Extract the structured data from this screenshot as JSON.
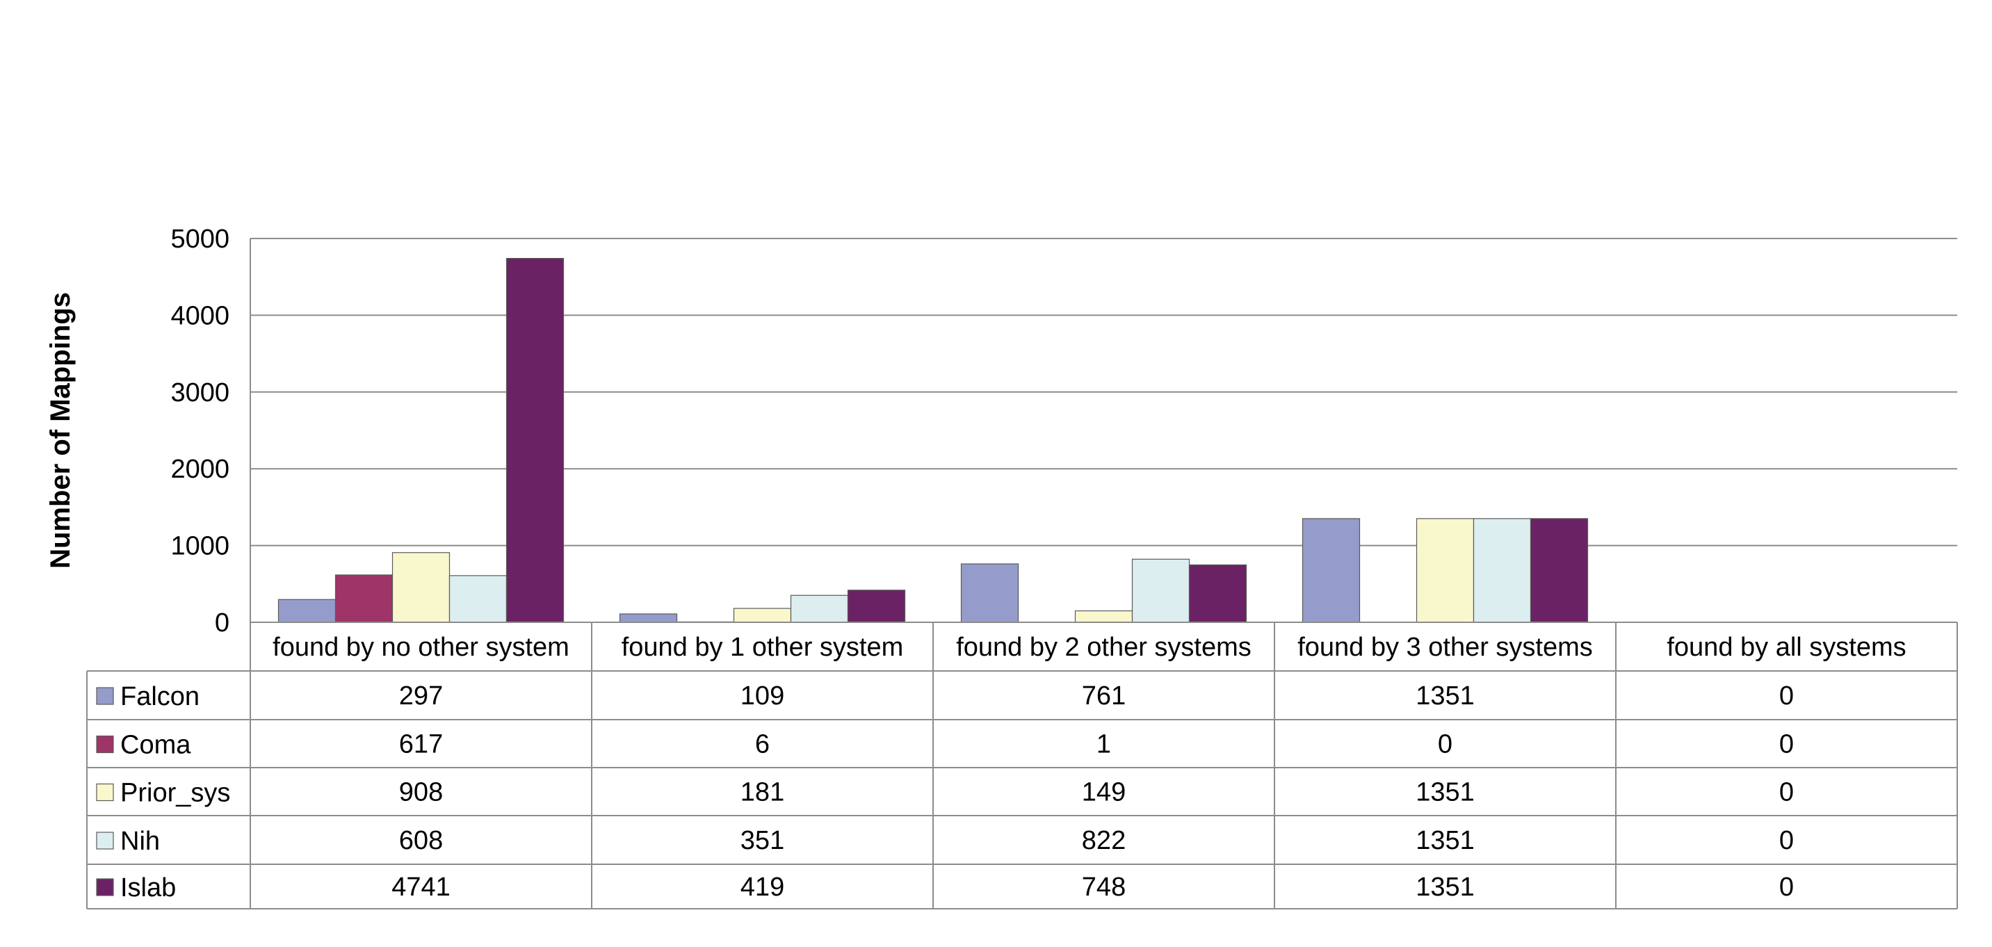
{
  "chart_data": {
    "type": "bar",
    "ylabel": "Number of Mappings",
    "ylim": [
      0,
      5000
    ],
    "yticks": [
      0,
      1000,
      2000,
      3000,
      4000,
      5000
    ],
    "grid": true,
    "legend_placement": "data-table-left",
    "categories": [
      "found by no other system",
      "found by 1 other system",
      "found by 2 other systems",
      "found by 3 other systems",
      "found by all systems"
    ],
    "series": [
      {
        "name": "Falcon",
        "color": "#959CCB",
        "values": [
          297,
          109,
          761,
          1351,
          0
        ]
      },
      {
        "name": "Coma",
        "color": "#9E3467",
        "values": [
          617,
          6,
          1,
          0,
          0
        ]
      },
      {
        "name": "Prior_sys",
        "color": "#F9F7CC",
        "values": [
          908,
          181,
          149,
          1351,
          0
        ]
      },
      {
        "name": "Nih",
        "color": "#DCEEF0",
        "values": [
          608,
          351,
          822,
          1351,
          0
        ]
      },
      {
        "name": "Islab",
        "color": "#6B2264",
        "values": [
          4741,
          419,
          748,
          1351,
          0
        ]
      }
    ]
  }
}
